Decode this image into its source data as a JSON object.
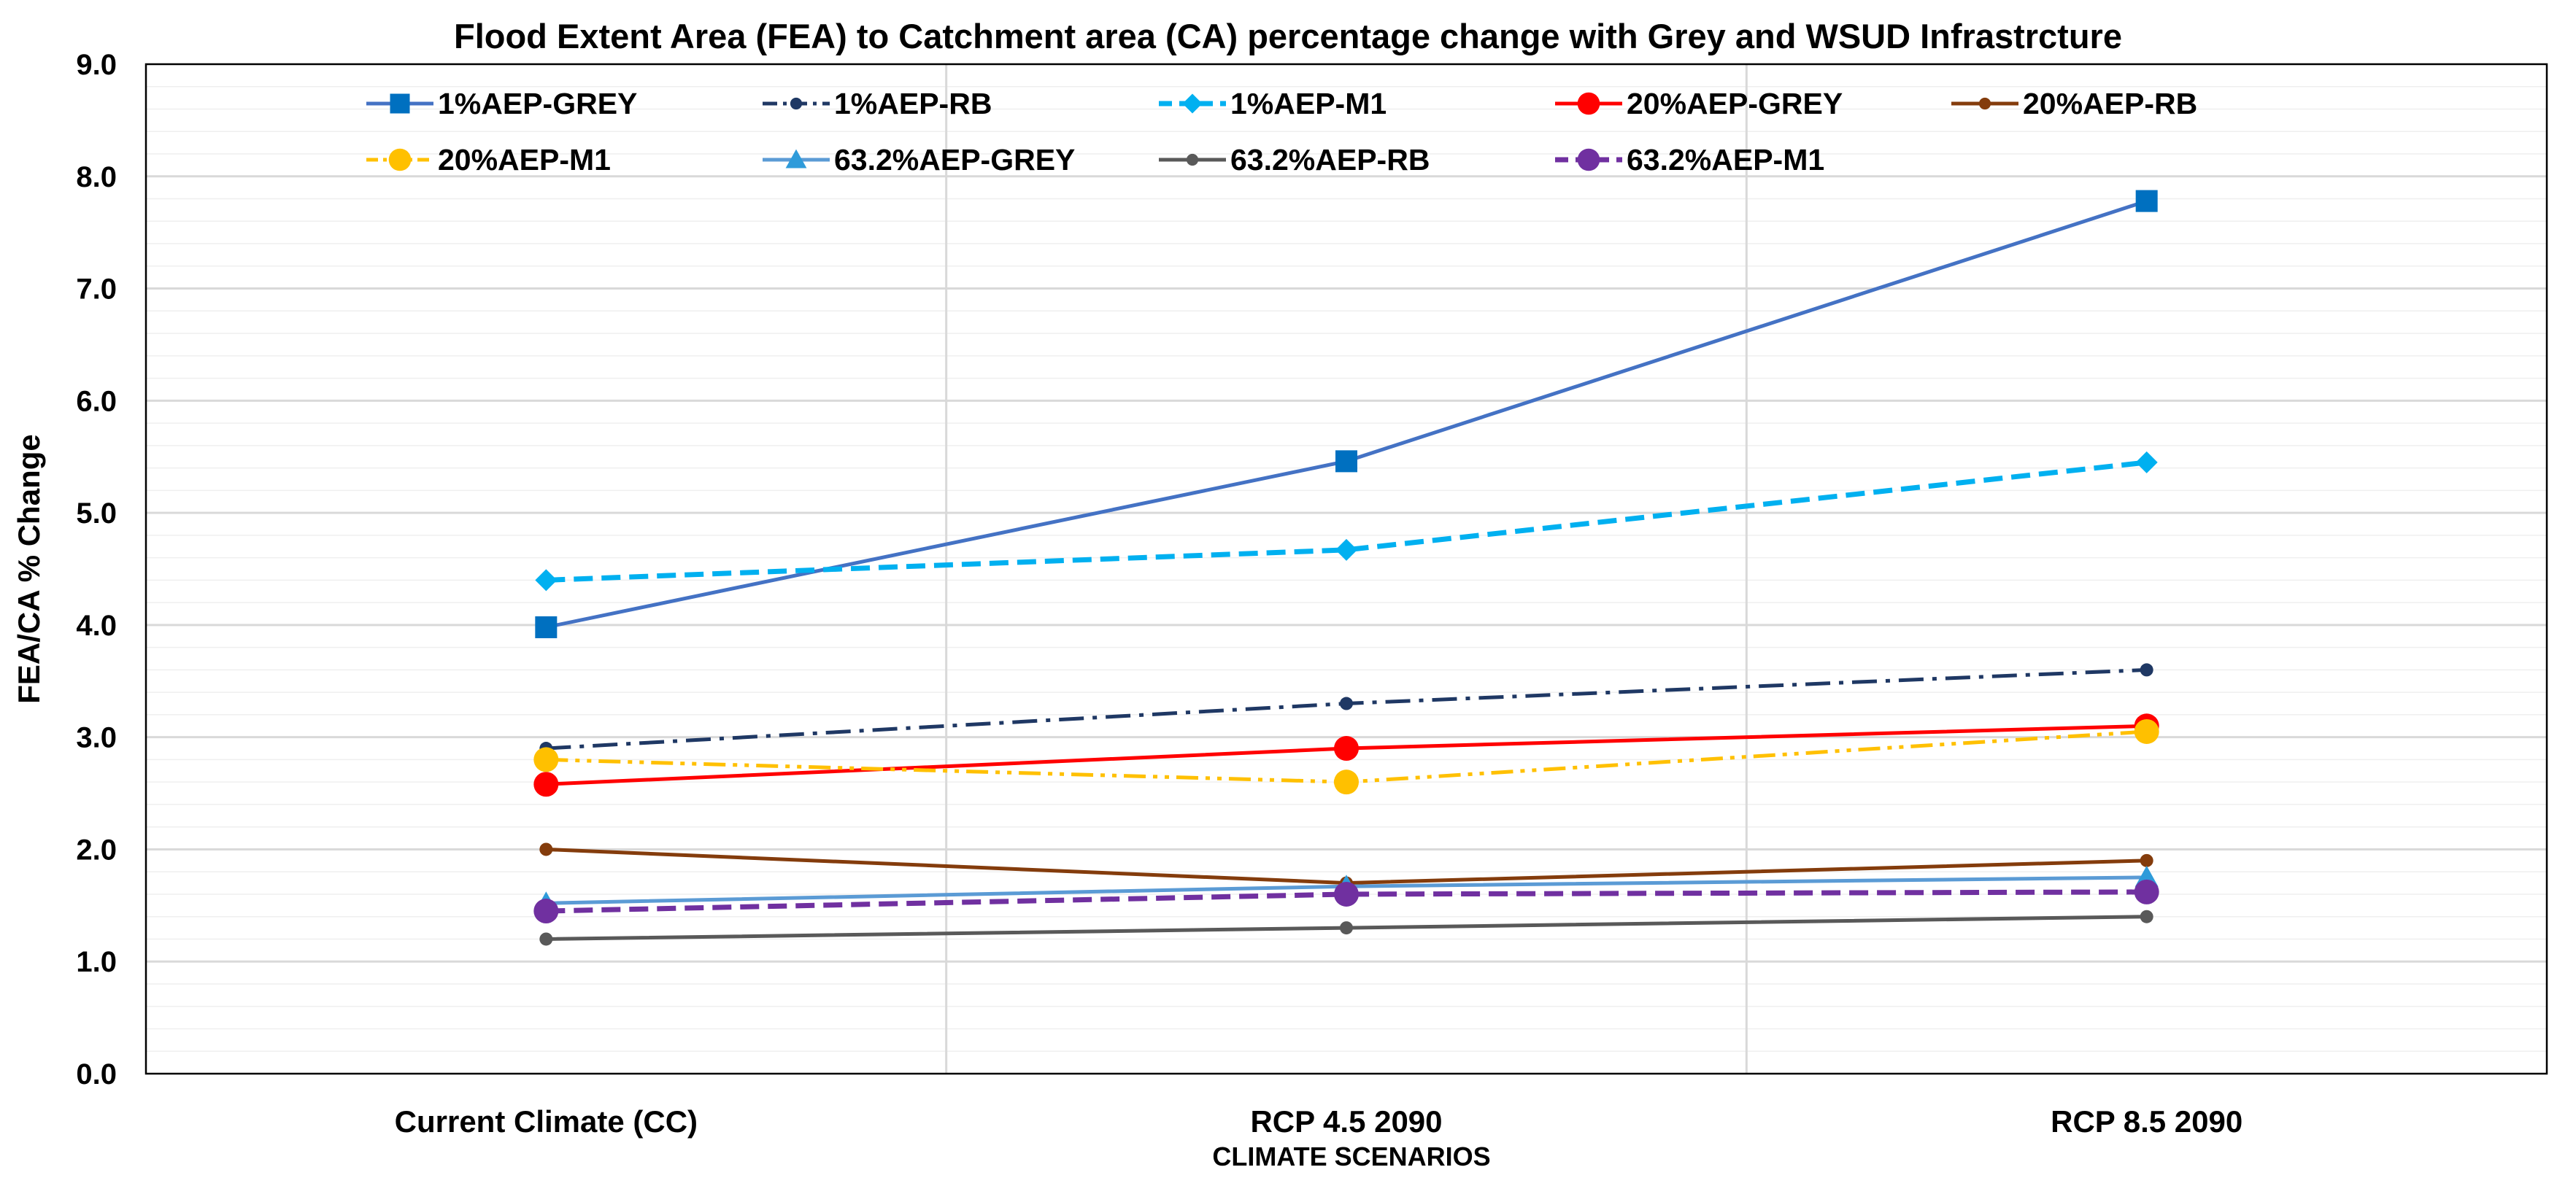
{
  "chart_data": {
    "type": "line",
    "title": "Flood Extent Area (FEA) to Catchment area (CA) percentage change with Grey and WSUD Infrastrcture",
    "xlabel": "CLIMATE SCENARIOS",
    "ylabel": "FEA/CA % Change",
    "categories": [
      "Current Climate (CC)",
      "RCP 4.5 2090",
      "RCP 8.5 2090"
    ],
    "ylim": [
      0,
      9
    ],
    "yticks": [
      "0.0",
      "1.0",
      "2.0",
      "3.0",
      "4.0",
      "5.0",
      "6.0",
      "7.0",
      "8.0",
      "9.0"
    ],
    "grid": true,
    "legend_position": "top",
    "series": [
      {
        "name": "1%AEP-GREY",
        "values": [
          3.98,
          5.46,
          7.78
        ],
        "color": "#4472C4",
        "marker_color": "#0070C0",
        "marker": "square",
        "dash": "solid"
      },
      {
        "name": "1%AEP-RB",
        "values": [
          2.9,
          3.3,
          3.6
        ],
        "color": "#1F3864",
        "marker_color": "#1F3864",
        "marker": "small-circle",
        "dash": "dashdot"
      },
      {
        "name": "1%AEP-M1",
        "values": [
          4.4,
          4.67,
          5.45
        ],
        "color": "#00B0F0",
        "marker_color": "#00B0F0",
        "marker": "diamond",
        "dash": "dash"
      },
      {
        "name": "20%AEP-GREY",
        "values": [
          2.58,
          2.9,
          3.1
        ],
        "color": "#FF0000",
        "marker_color": "#FF0000",
        "marker": "circle",
        "dash": "solid"
      },
      {
        "name": "20%AEP-RB",
        "values": [
          2.0,
          1.7,
          1.9
        ],
        "color": "#843C0C",
        "marker_color": "#843C0C",
        "marker": "small-circle",
        "dash": "solid"
      },
      {
        "name": "20%AEP-M1",
        "values": [
          2.8,
          2.6,
          3.05
        ],
        "color": "#FFC000",
        "marker_color": "#FFC000",
        "marker": "circle",
        "dash": "dashdotdot"
      },
      {
        "name": "63.2%AEP-GREY",
        "values": [
          1.52,
          1.67,
          1.75
        ],
        "color": "#5B9BD5",
        "marker_color": "#2E9BDA",
        "marker": "triangle",
        "dash": "solid"
      },
      {
        "name": "63.2%AEP-RB",
        "values": [
          1.2,
          1.3,
          1.4
        ],
        "color": "#595959",
        "marker_color": "#595959",
        "marker": "small-circle",
        "dash": "solid"
      },
      {
        "name": "63.2%AEP-M1",
        "values": [
          1.45,
          1.6,
          1.62
        ],
        "color": "#7030A0",
        "marker_color": "#7030A0",
        "marker": "circle",
        "dash": "dash"
      }
    ]
  }
}
